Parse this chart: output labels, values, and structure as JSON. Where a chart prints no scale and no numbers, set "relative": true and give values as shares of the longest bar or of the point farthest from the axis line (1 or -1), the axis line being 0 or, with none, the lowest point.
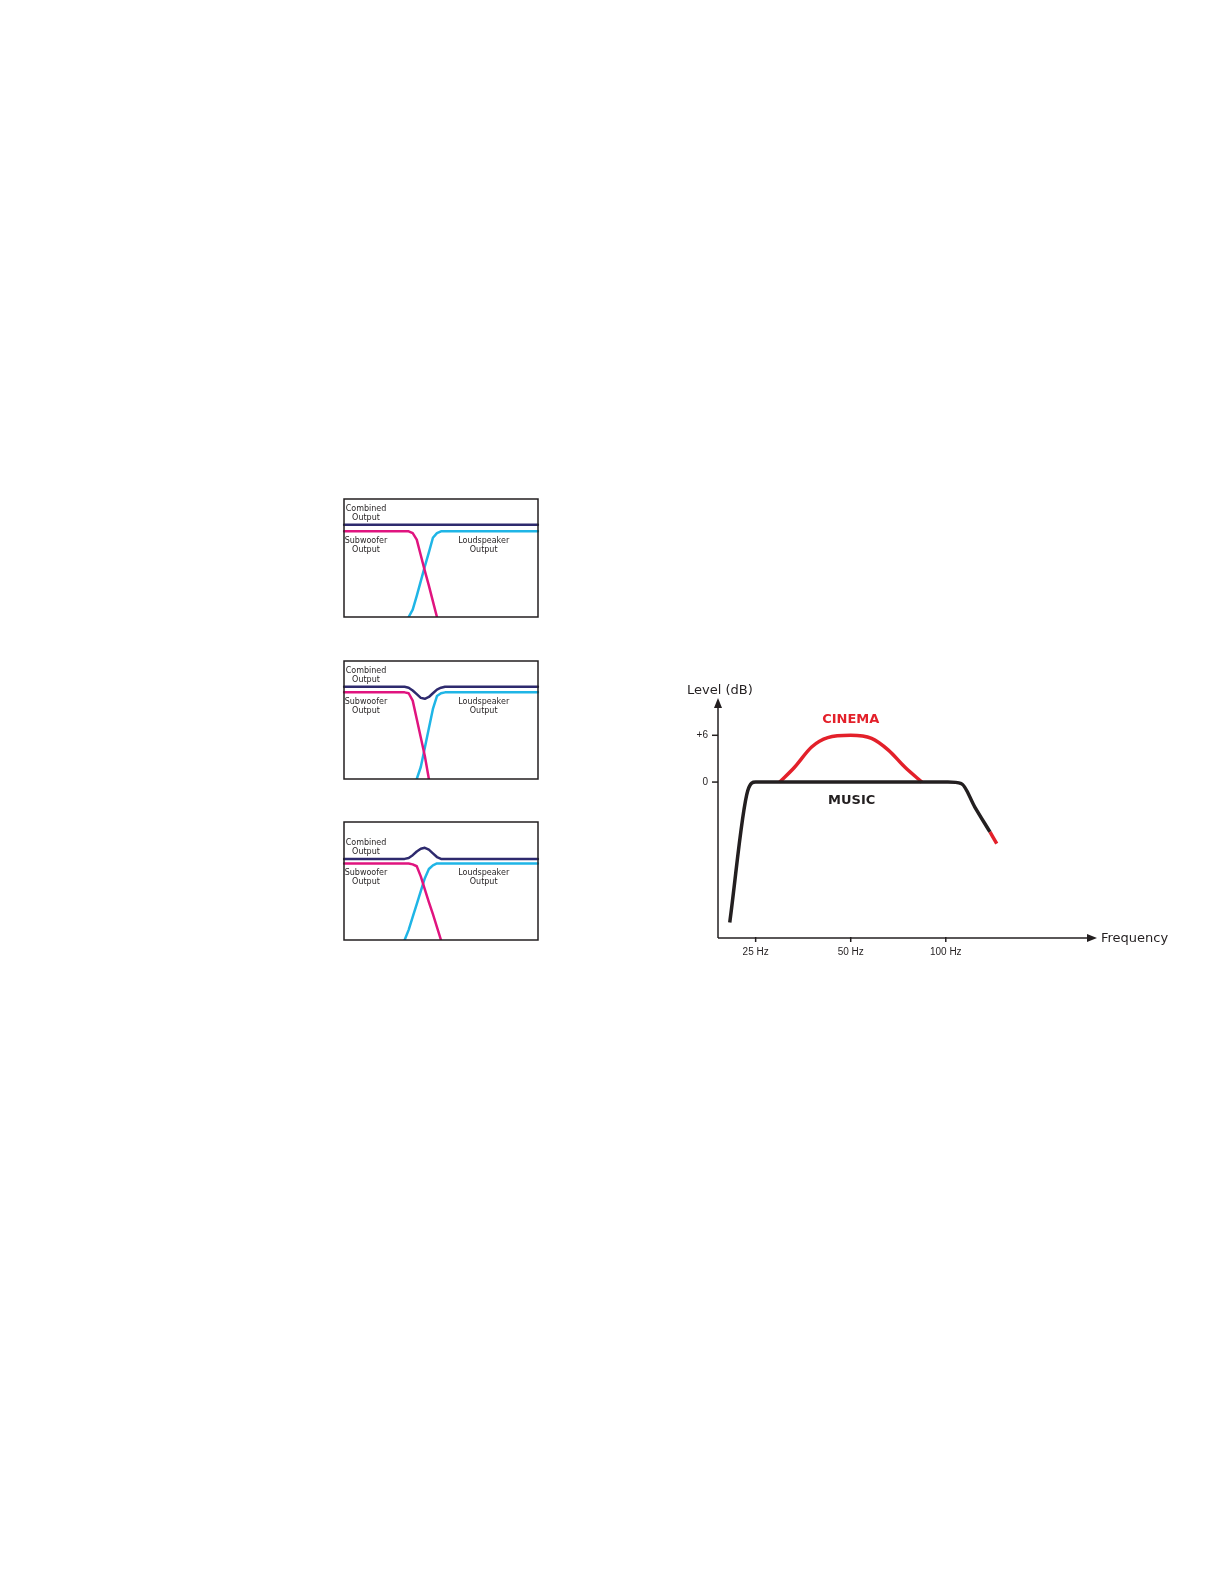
{
  "chart_data": [
    {
      "type": "line",
      "relative": true,
      "marker": "none",
      "categories": [
        null,
        null,
        null,
        null,
        null,
        null,
        null,
        null,
        null,
        null,
        null,
        null,
        null,
        null,
        null,
        null,
        null,
        null,
        null,
        null,
        null,
        null,
        null,
        null,
        null,
        null,
        null,
        null,
        null,
        null,
        null,
        null,
        null,
        null,
        null,
        null,
        null,
        null,
        null,
        null,
        null,
        null,
        null,
        null,
        null,
        null,
        null,
        null,
        null
      ],
      "series": [
        {
          "name": "Combined Output",
          "color": "#2e2a6e",
          "values": [
            1,
            1,
            1,
            1,
            1,
            1,
            1,
            1,
            1,
            1,
            1,
            1,
            1,
            1,
            1,
            1,
            1,
            1,
            1,
            1,
            1,
            1,
            1,
            1,
            1,
            1,
            1,
            1,
            1,
            1,
            1,
            1,
            1,
            1,
            1,
            1,
            1,
            1,
            1,
            1,
            1,
            1,
            1,
            1,
            1,
            1,
            1,
            1,
            1
          ]
        },
        {
          "name": "Subwoofer Output",
          "color": "#e0147f",
          "values": [
            0.93,
            0.93,
            0.93,
            0.93,
            0.93,
            0.93,
            0.93,
            0.93,
            0.93,
            0.93,
            0.93,
            0.93,
            0.93,
            0.93,
            0.93,
            0.93,
            0.93,
            0.91,
            0.84,
            0.67,
            0.5,
            0.34,
            0.17,
            0,
            null,
            null,
            null,
            null,
            null,
            null,
            null,
            null,
            null,
            null,
            null,
            null,
            null,
            null,
            null,
            null,
            null,
            null,
            null,
            null,
            null,
            null,
            null,
            null,
            null
          ]
        },
        {
          "name": "Loudspeaker Output",
          "color": "#1fb5e6",
          "values": [
            null,
            null,
            null,
            null,
            null,
            null,
            null,
            null,
            null,
            null,
            null,
            null,
            null,
            null,
            null,
            null,
            0,
            0.08,
            0.23,
            0.39,
            0.55,
            0.7,
            0.86,
            0.91,
            0.93,
            0.93,
            0.93,
            0.93,
            0.93,
            0.93,
            0.93,
            0.93,
            0.93,
            0.93,
            0.93,
            0.93,
            0.93,
            0.93,
            0.93,
            0.93,
            0.93,
            0.93,
            0.93,
            0.93,
            0.93,
            0.93,
            0.93,
            0.93,
            0.93
          ]
        }
      ]
    },
    {
      "type": "line",
      "relative": true,
      "marker": "none",
      "categories": [
        null,
        null,
        null,
        null,
        null,
        null,
        null,
        null,
        null,
        null,
        null,
        null,
        null,
        null,
        null,
        null,
        null,
        null,
        null,
        null,
        null,
        null,
        null,
        null,
        null,
        null,
        null,
        null,
        null,
        null,
        null,
        null,
        null,
        null,
        null,
        null,
        null,
        null,
        null,
        null,
        null,
        null,
        null,
        null,
        null,
        null,
        null,
        null,
        null
      ],
      "series": [
        {
          "name": "Combined Output",
          "color": "#2e2a6e",
          "values": [
            1,
            1,
            1,
            1,
            1,
            1,
            1,
            1,
            1,
            1,
            1,
            1,
            1,
            1,
            1,
            1,
            0.99,
            0.96,
            0.92,
            0.88,
            0.87,
            0.89,
            0.93,
            0.97,
            0.99,
            1,
            1,
            1,
            1,
            1,
            1,
            1,
            1,
            1,
            1,
            1,
            1,
            1,
            1,
            1,
            1,
            1,
            1,
            1,
            1,
            1,
            1,
            1,
            1
          ]
        },
        {
          "name": "Subwoofer Output",
          "color": "#e0147f",
          "values": [
            0.94,
            0.94,
            0.94,
            0.94,
            0.94,
            0.94,
            0.94,
            0.94,
            0.94,
            0.94,
            0.94,
            0.94,
            0.94,
            0.94,
            0.94,
            0.94,
            0.93,
            0.85,
            0.65,
            0.45,
            0.25,
            0,
            null,
            null,
            null,
            null,
            null,
            null,
            null,
            null,
            null,
            null,
            null,
            null,
            null,
            null,
            null,
            null,
            null,
            null,
            null,
            null,
            null,
            null,
            null,
            null,
            null,
            null,
            null
          ]
        },
        {
          "name": "Loudspeaker Output",
          "color": "#1fb5e6",
          "values": [
            null,
            null,
            null,
            null,
            null,
            null,
            null,
            null,
            null,
            null,
            null,
            null,
            null,
            null,
            null,
            null,
            null,
            null,
            0,
            0.13,
            0.34,
            0.55,
            0.76,
            0.9,
            0.93,
            0.94,
            0.94,
            0.94,
            0.94,
            0.94,
            0.94,
            0.94,
            0.94,
            0.94,
            0.94,
            0.94,
            0.94,
            0.94,
            0.94,
            0.94,
            0.94,
            0.94,
            0.94,
            0.94,
            0.94,
            0.94,
            0.94,
            0.94,
            0.94
          ]
        }
      ]
    },
    {
      "type": "line",
      "relative": true,
      "marker": "none",
      "categories": [
        null,
        null,
        null,
        null,
        null,
        null,
        null,
        null,
        null,
        null,
        null,
        null,
        null,
        null,
        null,
        null,
        null,
        null,
        null,
        null,
        null,
        null,
        null,
        null,
        null,
        null,
        null,
        null,
        null,
        null,
        null,
        null,
        null,
        null,
        null,
        null,
        null,
        null,
        null,
        null,
        null,
        null,
        null,
        null,
        null,
        null,
        null,
        null,
        null
      ],
      "series": [
        {
          "name": "Combined Output",
          "color": "#2e2a6e",
          "values": [
            0.88,
            0.88,
            0.88,
            0.88,
            0.88,
            0.88,
            0.88,
            0.88,
            0.88,
            0.88,
            0.88,
            0.88,
            0.88,
            0.88,
            0.88,
            0.88,
            0.89,
            0.92,
            0.96,
            0.99,
            1,
            0.98,
            0.94,
            0.9,
            0.88,
            0.88,
            0.88,
            0.88,
            0.88,
            0.88,
            0.88,
            0.88,
            0.88,
            0.88,
            0.88,
            0.88,
            0.88,
            0.88,
            0.88,
            0.88,
            0.88,
            0.88,
            0.88,
            0.88,
            0.88,
            0.88,
            0.88,
            0.88,
            0.88
          ]
        },
        {
          "name": "Subwoofer Output",
          "color": "#e0147f",
          "values": [
            0.83,
            0.83,
            0.83,
            0.83,
            0.83,
            0.83,
            0.83,
            0.83,
            0.83,
            0.83,
            0.83,
            0.83,
            0.83,
            0.83,
            0.83,
            0.83,
            0.83,
            0.82,
            0.8,
            0.69,
            0.55,
            0.41,
            0.28,
            0.14,
            0,
            null,
            null,
            null,
            null,
            null,
            null,
            null,
            null,
            null,
            null,
            null,
            null,
            null,
            null,
            null,
            null,
            null,
            null,
            null,
            null,
            null,
            null,
            null,
            null
          ]
        },
        {
          "name": "Loudspeaker Output",
          "color": "#1fb5e6",
          "values": [
            null,
            null,
            null,
            null,
            null,
            null,
            null,
            null,
            null,
            null,
            null,
            null,
            null,
            null,
            null,
            0,
            0.11,
            0.25,
            0.39,
            0.53,
            0.67,
            0.77,
            0.81,
            0.83,
            0.83,
            0.83,
            0.83,
            0.83,
            0.83,
            0.83,
            0.83,
            0.83,
            0.83,
            0.83,
            0.83,
            0.83,
            0.83,
            0.83,
            0.83,
            0.83,
            0.83,
            0.83,
            0.83,
            0.83,
            0.83,
            0.83,
            0.83,
            0.83,
            0.83
          ]
        }
      ]
    },
    {
      "type": "line",
      "log": "x",
      "marker": "none",
      "xlabel": "Frequency",
      "ylabel": "Level (dB)",
      "xlim": [
        19,
        280
      ],
      "xticks": [
        {
          "value": 25,
          "label": "25 Hz"
        },
        {
          "value": 50,
          "label": "50 Hz"
        },
        {
          "value": 100,
          "label": "100 Hz"
        }
      ],
      "ylim": [
        -20,
        9.5
      ],
      "yticks": [
        0,
        {
          "value": 6,
          "label": "+6"
        }
      ],
      "series": [
        {
          "name": "MUSIC",
          "color": "#231f20",
          "x": [
            20.7,
            23.6,
            25,
            101.5,
            112,
            123.6,
            138
          ],
          "values": [
            -18,
            -1.1,
            0,
            0,
            -0.2,
            -3.2,
            -6.4
          ]
        },
        {
          "name": "CINEMA",
          "color": "#e3202a",
          "x": [
            29.8,
            33.2,
            37.6,
            42.3,
            50,
            58.2,
            65.8,
            74.3,
            84,
            110,
            138,
            145
          ],
          "values": [
            0,
            1.9,
            4.5,
            5.7,
            6,
            5.6,
            4.1,
            1.9,
            0,
            null,
            -6.4,
            -7.9
          ]
        }
      ]
    }
  ]
}
